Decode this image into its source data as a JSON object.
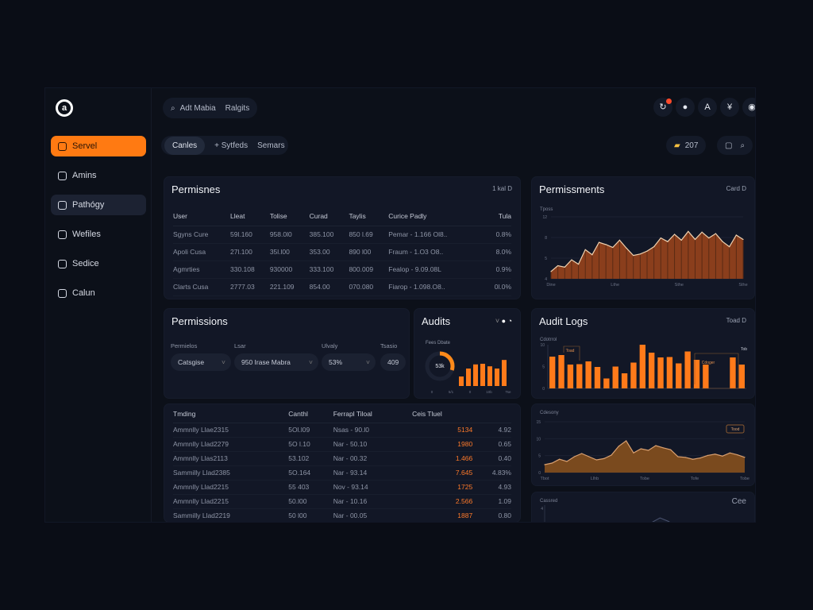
{
  "sidebar": {
    "logo": "a",
    "items": [
      {
        "label": "Servel",
        "icon": "user-icon",
        "active": true
      },
      {
        "label": "Amins",
        "icon": "clock-icon"
      },
      {
        "label": "Pathógy",
        "icon": "circle-icon",
        "hover": true
      },
      {
        "label": "Wefiles",
        "icon": "smiley-icon"
      },
      {
        "label": "Sedice",
        "icon": "list-icon"
      },
      {
        "label": "Calun",
        "icon": "box-icon"
      }
    ]
  },
  "header": {
    "search": "Adt Mabia",
    "search_suffix": "Ralgits",
    "icons": [
      "notification-icon",
      "user-icon",
      "font-icon",
      "filter-icon",
      "avatar-icon"
    ]
  },
  "tabs": [
    {
      "label": "Canles",
      "active": true
    },
    {
      "label": "+ Sytfeds"
    },
    {
      "label": "Semars"
    }
  ],
  "toolbar": {
    "count": "207",
    "icons": [
      "chat-icon",
      "search-icon"
    ]
  },
  "perm_table": {
    "title": "Permisnes",
    "meta": "1 kal D",
    "columns": [
      "User",
      "Lleat",
      "Tolise",
      "Curad",
      "Taylis",
      "Curice Padly",
      "Tula"
    ],
    "rows": [
      [
        "Sgyns Cure",
        "59l.160",
        "958.0l0",
        "385.100",
        "850 l.69",
        "Pemar - 1.166 Ol8..",
        "0.8%"
      ],
      [
        "Apoli Cusa",
        "27l.100",
        "35l.l00",
        "353.00",
        "890 l00",
        "Fraum - 1.O3 O8..",
        "8.0%"
      ],
      [
        "Agmrties",
        "330.108",
        "930000",
        "333.100",
        "800.009",
        "Fealop - 9.09.08L",
        "0.9%"
      ],
      [
        "Clarts Cusa",
        "2777.03",
        "221.109",
        "854.00",
        "070.080",
        "Fiarop - 1.098.O8..",
        "0l.0%"
      ]
    ]
  },
  "perm_form": {
    "title": "Permissions",
    "filters": [
      {
        "label": "Permielos",
        "value": "Catsgise"
      },
      {
        "label": "Lsar",
        "value": "950 Irase Mabra"
      },
      {
        "label": "Ulvaly",
        "value": "53%"
      },
      {
        "label": "Tsasio",
        "value": "409"
      }
    ],
    "columns": [
      "Tmding",
      "Canthl",
      "Ferrapl Tiloal",
      "Ceis Tluel"
    ],
    "rows": [
      [
        "Ammnlly Llae2315",
        "5Ol.l09",
        "Nsas - 90.l0",
        "5134",
        "4.92"
      ],
      [
        "Ammnlly Llad2279",
        "5O l.10",
        "Nar - 50.10",
        "1980",
        "0.65"
      ],
      [
        "Ammnlly Llas2113",
        "53.102",
        "Nar - 00.32",
        "1.466",
        "0.40"
      ],
      [
        "Sammilly Llad2385",
        "5O.164",
        "Nar - 93.14",
        "7.645",
        "4.83%"
      ],
      [
        "Ammnlly Llad2215",
        "55 403",
        "Nov - 93.14",
        "1725",
        "4.93"
      ],
      [
        "Ammnlly Llad2215",
        "50.l00",
        "Nar - 10.16",
        "2.566",
        "1.09"
      ],
      [
        "Sammilly Llad2219",
        "50 l00",
        "Nar - 00.05",
        "1887",
        "0.80"
      ]
    ]
  },
  "audits": {
    "title": "Audits",
    "label": "Fees Dbate",
    "donut_value": "53k",
    "donut_fraction": 0.3,
    "bars": [
      3,
      5.5,
      6.8,
      7,
      6.2,
      5.5,
      8.2
    ],
    "xticks": [
      "0",
      "5/1",
      "0",
      "10b",
      "Tse"
    ]
  },
  "colors": {
    "accent": "#ff7a12",
    "bg": "#0a0d16",
    "card": "#121726",
    "area_fill": "#8a3e1c",
    "area2_fill": "#7a4a1e"
  },
  "chart_data": [
    {
      "type": "area",
      "title": "Permissments",
      "meta": "Card D",
      "ylabel": "Tposs",
      "yticks": [
        "4",
        "5",
        "8",
        "12"
      ],
      "ylim": [
        4,
        12.5
      ],
      "xticks": [
        "Dine",
        "Lthe",
        "Sthe",
        "Sthe"
      ],
      "values": [
        5,
        5.8,
        5.6,
        6.6,
        6,
        8,
        7.3,
        9,
        8.7,
        8.3,
        9.3,
        8.2,
        7.2,
        7.4,
        7.8,
        8.4,
        9.6,
        9.1,
        10.1,
        9.3,
        10.5,
        9.4,
        10.4,
        9.6,
        10.2,
        9.1,
        8.4,
        10,
        9.4
      ]
    },
    {
      "type": "bar",
      "title": "Audit Logs",
      "meta": "Toad D",
      "ylabel": "Cdotrrol",
      "yticks": [
        "0",
        "5",
        "10"
      ],
      "ylim": [
        0,
        13
      ],
      "annotations": [
        "Toad",
        "Cdoger",
        "Tob"
      ],
      "values": [
        8,
        8.4,
        6,
        6.1,
        6.8,
        5.4,
        2.5,
        5.5,
        3.8,
        6.5,
        11,
        9,
        7.8,
        7.9,
        6.3,
        9.3,
        7.2,
        6,
        null,
        null,
        7.8,
        6
      ]
    },
    {
      "type": "area",
      "ylabel": "Cdesony",
      "yticks": [
        "0",
        "5",
        "10",
        "15"
      ],
      "ylim": [
        0,
        16
      ],
      "xticks": [
        "Tbot",
        "Llhb",
        "Tobe",
        "Tofe",
        "Tobe"
      ],
      "annotations": [
        "Tood"
      ],
      "values": [
        2.5,
        3,
        4.2,
        3.5,
        5,
        6,
        5,
        4,
        4.4,
        5.5,
        8.3,
        10,
        6.2,
        7.5,
        7,
        8.5,
        7.8,
        7.2,
        5,
        4.8,
        4.2,
        4.6,
        5.4,
        5.8,
        5.2,
        6.2,
        5.6,
        4.8
      ]
    },
    {
      "type": "line",
      "ylabel": "Cassred",
      "meta": "Cee",
      "yticks": [
        "4"
      ],
      "ylim": [
        0,
        10
      ],
      "values": [
        0,
        0,
        0,
        0,
        0,
        0.5,
        2,
        1,
        1.5,
        3,
        2.5,
        2,
        4,
        6,
        4.5,
        2,
        2.5,
        1,
        1.5,
        2.5,
        1,
        0.5,
        0,
        0
      ]
    }
  ]
}
